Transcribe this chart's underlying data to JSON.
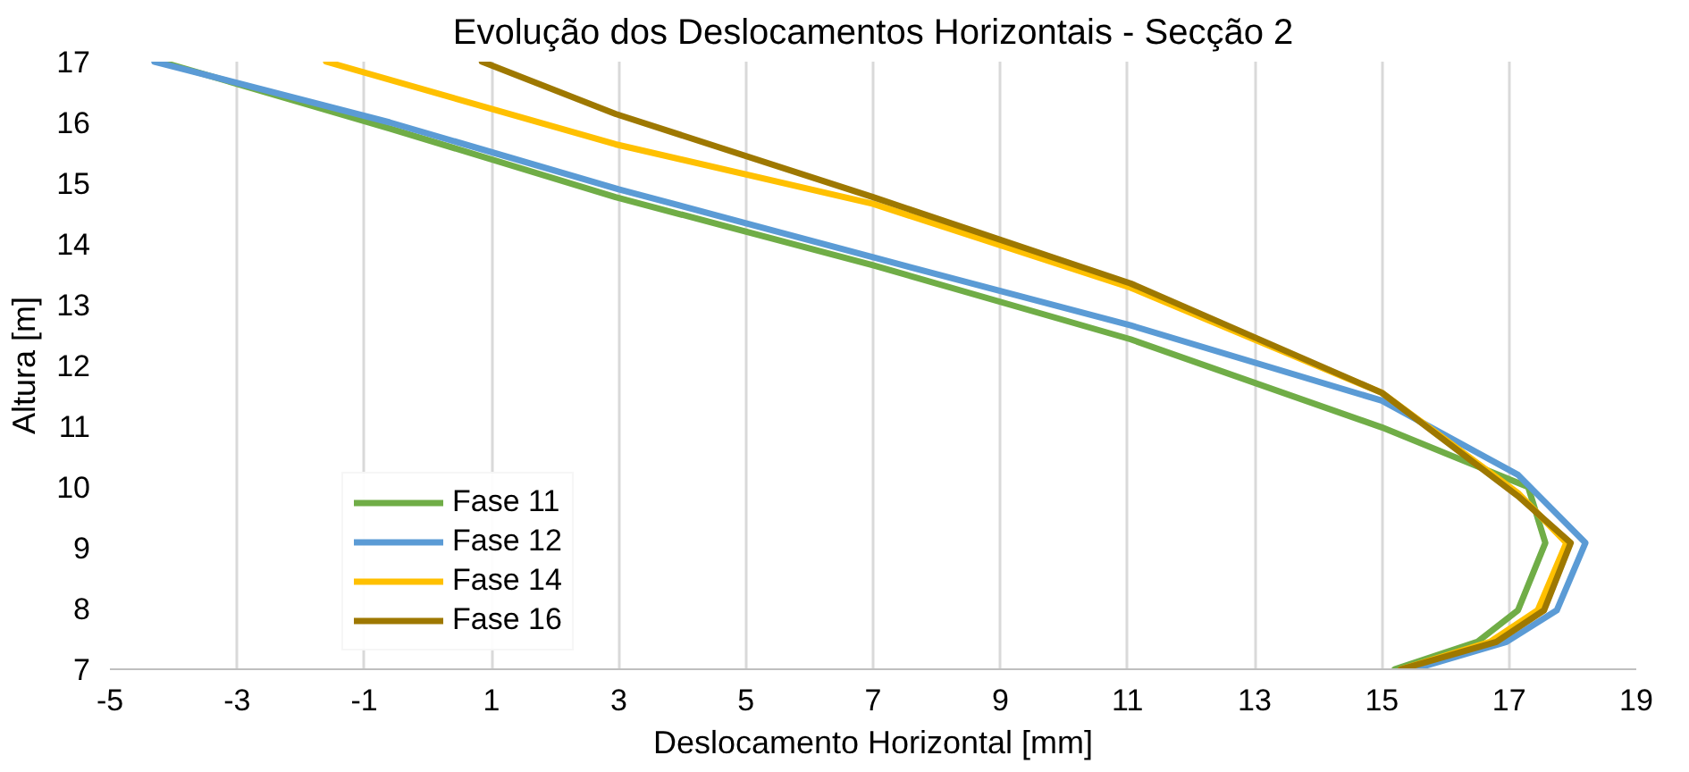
{
  "chart_data": {
    "type": "line",
    "title": "Evolução dos Deslocamentos Horizontais - Secção 2",
    "xlabel": "Deslocamento Horizontal [mm]",
    "ylabel": "Altura [m]",
    "xlim": [
      -5,
      19
    ],
    "xticks": [
      -5,
      -3,
      -1,
      1,
      3,
      5,
      7,
      9,
      11,
      13,
      15,
      17,
      19
    ],
    "ylim": [
      7,
      17
    ],
    "yticks": [
      7,
      8,
      9,
      10,
      11,
      12,
      13,
      14,
      15,
      16,
      17
    ],
    "grid": "x",
    "legend": "bottom left",
    "marker": "none",
    "line_style": "solid",
    "series": [
      {
        "name": "Fase 11",
        "color": "#70ad47",
        "x": [
          15.2,
          16.5,
          17.14,
          17.57,
          17.3,
          15.0,
          11.05,
          7.0,
          2.95,
          -0.6,
          -4.2
        ],
        "values": [
          7,
          7.45,
          7.97,
          9.08,
          10.0,
          10.98,
          12.43,
          13.65,
          14.77,
          15.9,
          17
        ]
      },
      {
        "name": "Fase 12",
        "color": "#5b9bd5",
        "x": [
          15.5,
          16.96,
          17.75,
          18.2,
          17.14,
          15.0,
          11.05,
          7.0,
          3.0,
          -0.6,
          -4.3
        ],
        "values": [
          7,
          7.45,
          7.97,
          9.08,
          10.2,
          11.42,
          12.66,
          13.78,
          14.9,
          16.0,
          17
        ]
      },
      {
        "name": "Fase 14",
        "color": "#ffc000",
        "x": [
          15.3,
          16.7,
          17.45,
          17.9,
          17.14,
          15.0,
          11.05,
          7.0,
          2.95,
          -1.6
        ],
        "values": [
          7,
          7.45,
          7.97,
          9.08,
          9.9,
          11.55,
          13.28,
          14.66,
          15.64,
          17
        ]
      },
      {
        "name": "Fase 16",
        "color": "#9e7800",
        "x": [
          15.3,
          16.8,
          17.55,
          17.97,
          17.14,
          15.0,
          11.05,
          7.0,
          2.95,
          0.85
        ],
        "values": [
          7,
          7.45,
          7.97,
          9.08,
          9.85,
          11.55,
          13.35,
          14.77,
          16.14,
          17
        ]
      }
    ]
  }
}
